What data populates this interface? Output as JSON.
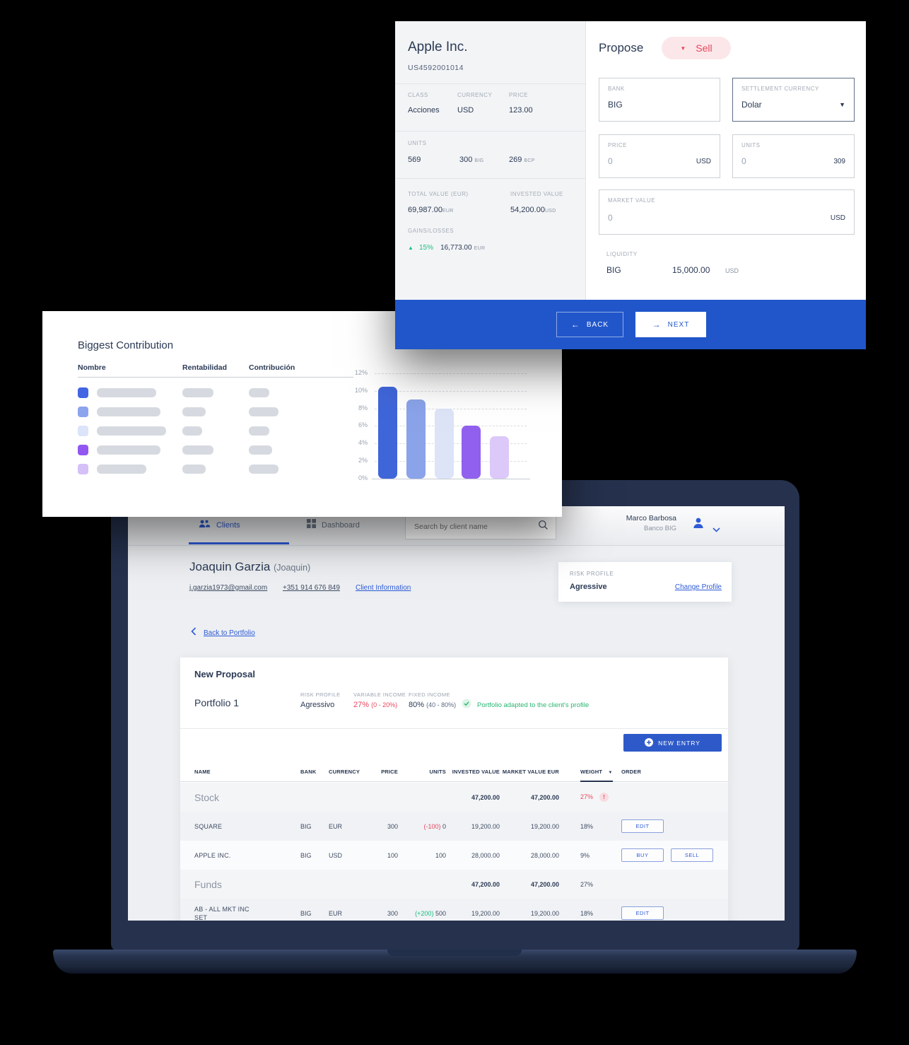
{
  "colors": {
    "accent_blue": "#2e5bd7",
    "footer_blue": "#2156cb",
    "red": "#e8465c",
    "green": "#1fbe83",
    "dark_text": "#2b3a55"
  },
  "instrument_card": {
    "title": "Apple Inc.",
    "isin": "US4592001014",
    "class_label": "CLASS",
    "class_value": "Acciones",
    "currency_label": "CURRENCY",
    "currency_value": "USD",
    "price_label": "PRICE",
    "price_value": "123.00",
    "units_label": "UNITS",
    "units_total": "569",
    "units_big": "300",
    "units_big_suffix": "BIG",
    "units_bcp": "269",
    "units_bcp_suffix": "BCP",
    "total_value_label": "TOTAL VALUE (EUR)",
    "total_value": "69,987.00",
    "total_value_suffix": "EUR",
    "invested_value_label": "INVESTED VALUE",
    "invested_value": "54,200.00",
    "invested_value_suffix": "USD",
    "gains_label": "GAINS/LOSSES",
    "gains_arrow": "▲",
    "gains_pct": "15%",
    "gains_value": "16,773.00",
    "gains_suffix": "EUR"
  },
  "propose_panel": {
    "heading": "Propose",
    "action_caret": "▼",
    "action_label": "Sell",
    "fields": {
      "bank_label": "BANK",
      "bank_value": "BIG",
      "settlement_label": "SETTLEMENT CURRENCY",
      "settlement_value": "Dolar",
      "settlement_caret": "▼",
      "price_label": "PRICE",
      "price_value": "0",
      "price_unit": "USD",
      "units_label": "UNITS",
      "units_value": "0",
      "units_max": "309",
      "market_label": "MARKET VALUE",
      "market_value": "0",
      "market_unit": "USD",
      "liquidity_label": "LIQUIDITY",
      "liquidity_bank": "BIG",
      "liquidity_value": "15,000.00",
      "liquidity_unit": "USD"
    },
    "footer": {
      "back_arrow": "←",
      "back_label": "BACK",
      "next_arrow": "→",
      "next_label": "NEXT"
    }
  },
  "contribution_card": {
    "title": "Biggest Contribution",
    "columns": [
      "Nombre",
      "Rentabilidad",
      "Contribución"
    ],
    "rows": [
      {
        "color": "#4365e2",
        "name_w": 84,
        "rent_w": 44,
        "contrib_w": 29
      },
      {
        "color": "#8ca4ee",
        "name_w": 90,
        "rent_w": 33,
        "contrib_w": 42
      },
      {
        "color": "#dce4f9",
        "name_w": 98,
        "rent_w": 28,
        "contrib_w": 29
      },
      {
        "color": "#9257f0",
        "name_w": 90,
        "rent_w": 44,
        "contrib_w": 33
      },
      {
        "color": "#d5c0f8",
        "name_w": 70,
        "rent_w": 33,
        "contrib_w": 42
      }
    ],
    "chart_data": {
      "type": "bar",
      "title": "Biggest Contribution",
      "categories": [
        "",
        "",
        "",
        "",
        ""
      ],
      "values": [
        10.5,
        9,
        8,
        6,
        4.8
      ],
      "colors": [
        "#3f66d9",
        "#8aa3e9",
        "#dde4f8",
        "#9160ef",
        "#dcc8f9"
      ],
      "ylim": [
        0,
        12
      ],
      "ytick_step": 2,
      "ytick_suffix": "%",
      "grid": "dashed horizontal",
      "legend": "none"
    }
  },
  "laptop": {
    "nav": {
      "clients_label": "Clients",
      "dashboard_label": "Dashboard",
      "search_placeholder": "Search by client name",
      "user_name": "Marco Barbosa",
      "user_org": "Banco BIG"
    },
    "client": {
      "name": "Joaquin Garzia",
      "nickname": "(Joaquin)",
      "email": "j.garzia1973@gmail.com",
      "phone": "+351 914 676 849",
      "info_link": "Client Information"
    },
    "risk_profile": {
      "label": "RISK PROFILE",
      "value": "Agressive",
      "change_link": "Change Profile"
    },
    "back_link": "Back to Portfolio",
    "proposal": {
      "title": "New Proposal",
      "portfolio_name": "Portfolio 1",
      "risk_label": "RISK PROFILE",
      "risk_value": "Agressivo",
      "variable_label": "VARIABLE INCOME",
      "variable_value": "27%",
      "variable_range": "(0 - 20%)",
      "fixed_label": "FIXED INCOME",
      "fixed_value": "80%",
      "fixed_range": "(40 - 80%)",
      "status_text": "Portfolio adapted to the client's profile",
      "new_entry_label": "NEW ENTRY",
      "table": {
        "headers": [
          "NAME",
          "BANK",
          "CURRENCY",
          "PRICE",
          "UNITS",
          "INVESTED VALUE",
          "MARKET VALUE EUR",
          "WEIGHT",
          "ORDER"
        ],
        "weight_caret": "▼",
        "rows": [
          {
            "type": "section",
            "name": "Stock",
            "invested": "47,200.00",
            "market": "47,200.00",
            "weight": "27%",
            "weight_red": true,
            "weight_alert": true
          },
          {
            "type": "asset",
            "name": "SQUARE",
            "bank": "BIG",
            "currency": "EUR",
            "price": "300",
            "delta": "(-100)",
            "delta_dir": "down",
            "units": "0",
            "invested": "19,200.00",
            "market": "19,200.00",
            "weight": "18%",
            "actions": [
              "EDIT"
            ]
          },
          {
            "type": "asset",
            "name": "APPLE INC.",
            "bank": "BIG",
            "currency": "USD",
            "price": "100",
            "delta": "",
            "units": "100",
            "invested": "28,000.00",
            "market": "28,000.00",
            "weight": "9%",
            "actions": [
              "BUY",
              "SELL"
            ]
          },
          {
            "type": "section",
            "name": "Funds",
            "invested": "47,200.00",
            "market": "47,200.00",
            "weight": "27%",
            "weight_red": false,
            "weight_alert": false
          },
          {
            "type": "asset",
            "name": "AB - ALL MKT INC",
            "name_line2": "SET",
            "bank": "BIG",
            "currency": "EUR",
            "price": "300",
            "delta": "(+200)",
            "delta_dir": "up",
            "units": "500",
            "invested": "19,200.00",
            "market": "19,200.00",
            "weight": "18%",
            "actions": [
              "EDIT"
            ]
          }
        ]
      }
    }
  }
}
